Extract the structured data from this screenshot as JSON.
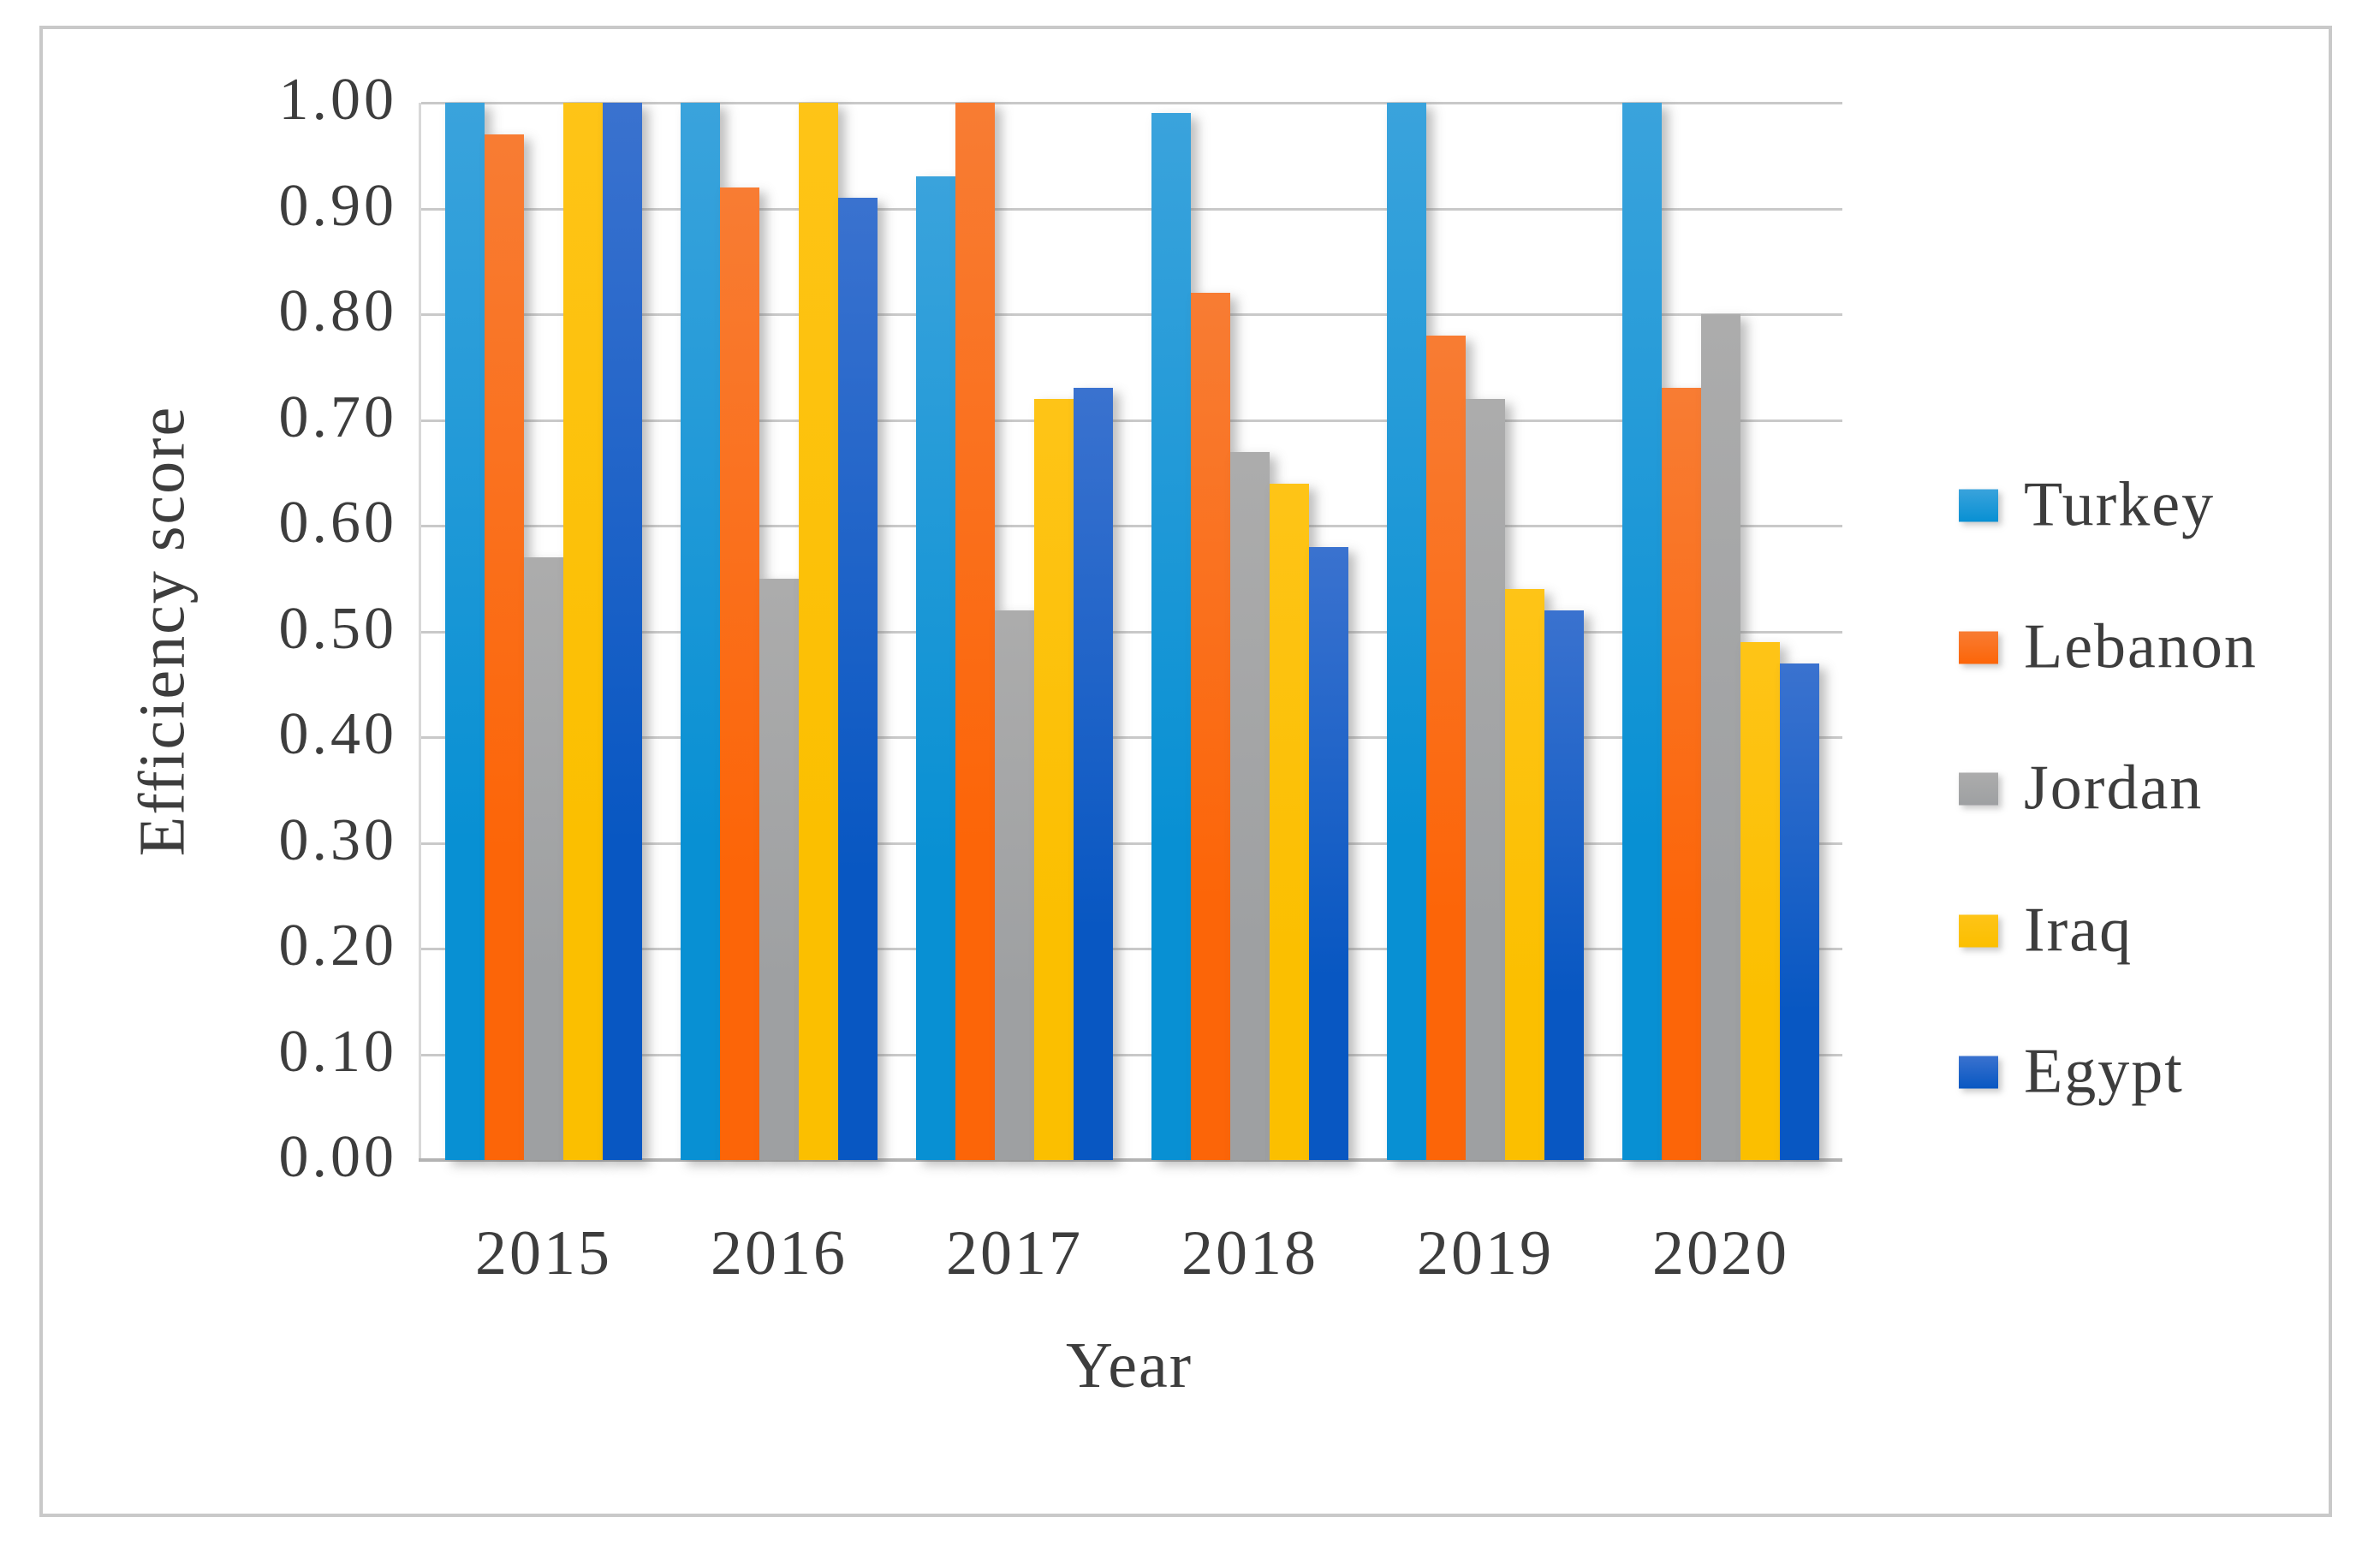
{
  "style": {
    "frame_color": "#c9c9c9",
    "grid_color": "#c9c9c9",
    "axis_color": "#b3b3b3",
    "text_color": "#3d3d3d",
    "background": "#ffffff"
  },
  "chart_data": {
    "type": "bar",
    "title": "",
    "xlabel": "Year",
    "ylabel": "Efficiency score",
    "categories": [
      "2015",
      "2016",
      "2017",
      "2018",
      "2019",
      "2020"
    ],
    "series": [
      {
        "name": "Turkey",
        "color_top": "#3aa3dc",
        "color_bottom": "#0890d3",
        "values": [
          1.0,
          1.0,
          0.93,
          0.99,
          1.0,
          1.0
        ]
      },
      {
        "name": "Lebanon",
        "color_top": "#f87c33",
        "color_bottom": "#fc6508",
        "values": [
          0.97,
          0.92,
          1.0,
          0.82,
          0.78,
          0.73
        ]
      },
      {
        "name": "Jordan",
        "color_top": "#acacac",
        "color_bottom": "#9ea0a2",
        "values": [
          0.57,
          0.55,
          0.52,
          0.67,
          0.72,
          0.8
        ]
      },
      {
        "name": "Iraq",
        "color_top": "#fec417",
        "color_bottom": "#fbbf00",
        "values": [
          1.0,
          1.0,
          0.72,
          0.64,
          0.54,
          0.49
        ]
      },
      {
        "name": "Egypt",
        "color_top": "#3a72cf",
        "color_bottom": "#0857c2",
        "values": [
          1.0,
          0.91,
          0.73,
          0.58,
          0.52,
          0.47
        ]
      }
    ],
    "ylim": [
      0.0,
      1.0
    ],
    "ytick_step": 0.1,
    "yticks": [
      "1.00",
      "0.90",
      "0.80",
      "0.70",
      "0.60",
      "0.50",
      "0.40",
      "0.30",
      "0.20",
      "0.10",
      "0.00"
    ],
    "grid": "horizontal",
    "legend_position": "right"
  }
}
